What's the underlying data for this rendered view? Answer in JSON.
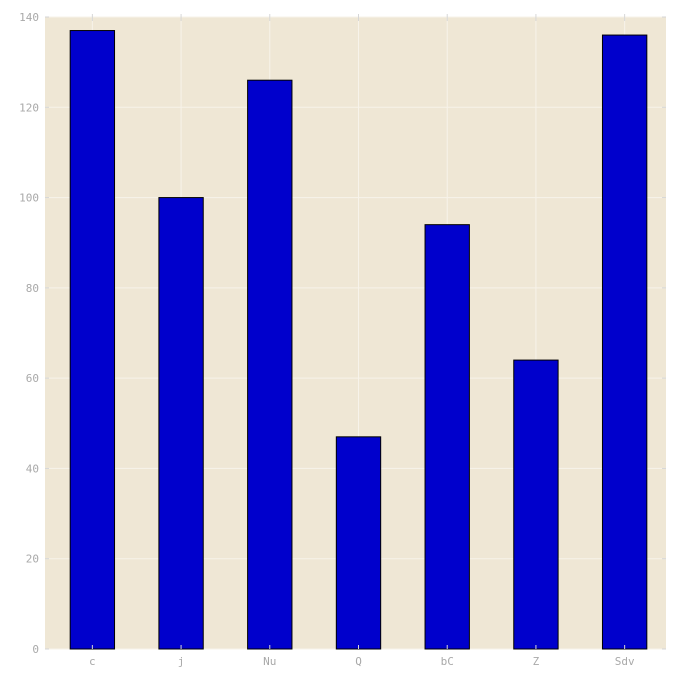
{
  "chart_data": {
    "type": "bar",
    "categories": [
      "c",
      "j",
      "Nu",
      "Q",
      "bC",
      "Z",
      "Sdv"
    ],
    "values": [
      137,
      100,
      126,
      47,
      94,
      64,
      136
    ],
    "ylim": [
      0,
      140
    ],
    "yticks": [
      0,
      20,
      40,
      60,
      80,
      100,
      120,
      140
    ],
    "grid": true,
    "title": "",
    "xlabel": "",
    "ylabel": "",
    "colors": {
      "bar_fill": "#0000cc",
      "bar_edge": "#000000",
      "plot_background": "#efe7d5",
      "grid": "#f7f3ea",
      "tick_label": "#a9a9a9",
      "tick_mark": "#d6d6d6"
    }
  }
}
